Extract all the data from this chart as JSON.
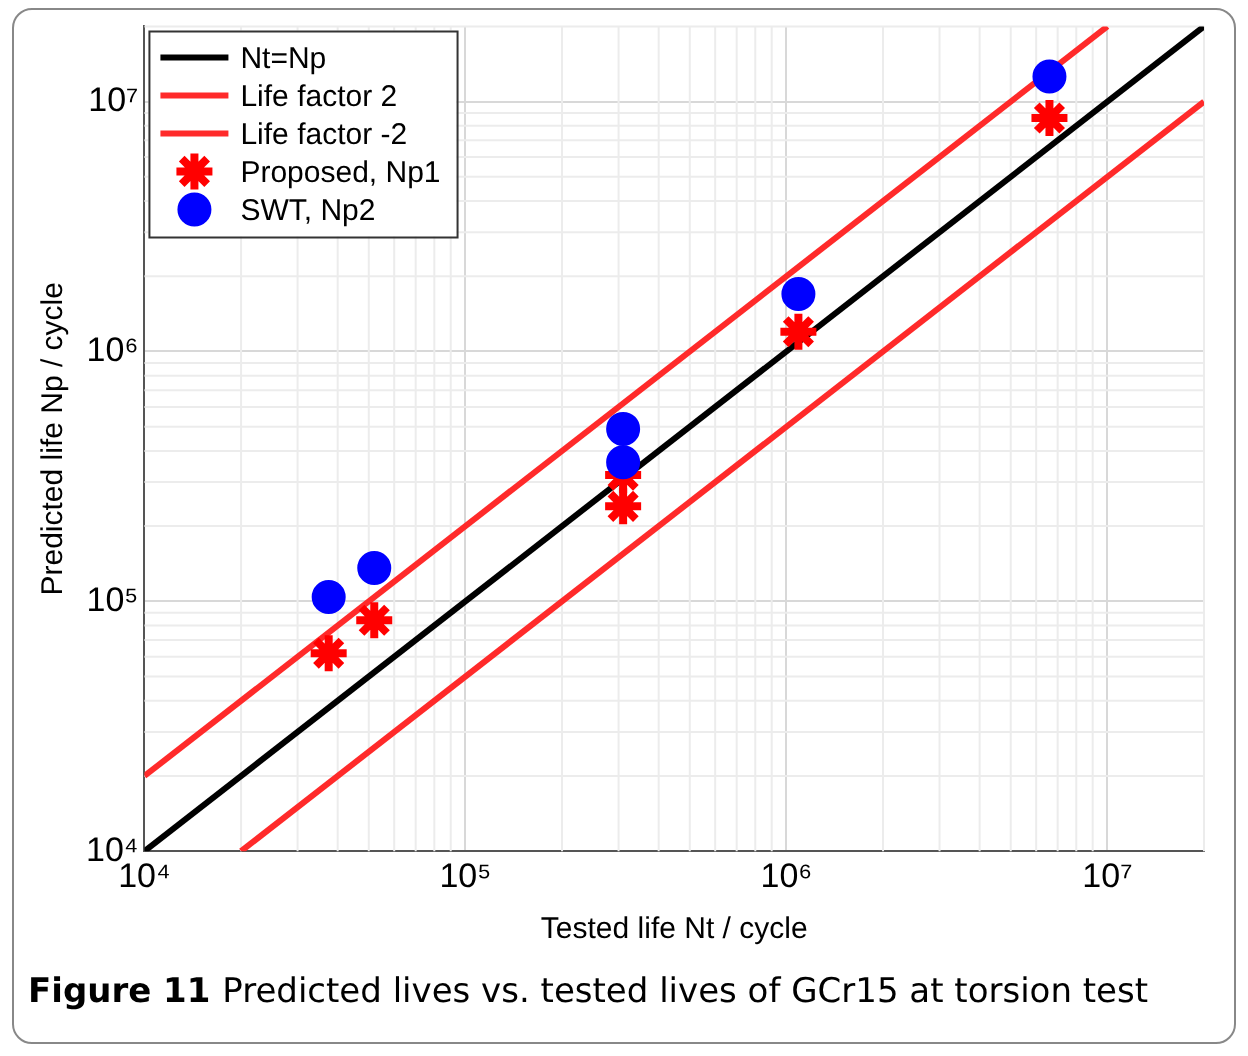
{
  "chart_data": {
    "type": "scatter",
    "xlabel": "Tested life Nt / cycle",
    "ylabel": "Predicted life Np / cycle",
    "log": "xy",
    "grid": true,
    "legend": "top left",
    "xlim": [
      10000,
      20000000
    ],
    "ylim": [
      10000,
      20000000
    ],
    "xticks": [
      {
        "value": 10000,
        "label": "10⁴"
      },
      {
        "value": 100000,
        "label": "10⁵"
      },
      {
        "value": 1000000,
        "label": "10⁶"
      },
      {
        "value": 10000000,
        "label": "10⁷"
      }
    ],
    "yticks": [
      {
        "value": 10000,
        "label": "10⁴"
      },
      {
        "value": 100000,
        "label": "10⁵"
      },
      {
        "value": 1000000,
        "label": "10⁶"
      },
      {
        "value": 10000000,
        "label": "10⁷"
      }
    ],
    "series": [
      {
        "name": "Nt=Np",
        "type": "line",
        "color": "#000000",
        "marker": "none",
        "line_style": "solid",
        "x": [
          10000,
          20000000
        ],
        "values": [
          10000,
          20000000
        ]
      },
      {
        "name": "Life factor 2",
        "type": "line",
        "color": "#ff2a2a",
        "marker": "none",
        "line_style": "solid",
        "x": [
          10000,
          10000000
        ],
        "values": [
          20000,
          20000000
        ]
      },
      {
        "name": "Life factor -2",
        "type": "line",
        "color": "#ff2a2a",
        "marker": "none",
        "line_style": "solid",
        "x": [
          20000,
          20000000
        ],
        "values": [
          10000,
          10000000
        ]
      },
      {
        "name": "Proposed, Np1",
        "type": "scatter",
        "color": "#ff0000",
        "x": [
          37500,
          52000,
          310000,
          310000,
          1090000,
          6600000
        ],
        "values": [
          62000,
          84000,
          320000,
          240000,
          1200000,
          8600000
        ]
      },
      {
        "name": "SWT, Np2",
        "type": "scatter",
        "color": "#0000ff",
        "marker": "circle",
        "x": [
          37500,
          52000,
          310000,
          310000,
          1090000,
          6600000
        ],
        "values": [
          104000,
          136000,
          490000,
          360000,
          1700000,
          12600000
        ]
      }
    ],
    "annotations": [
      "Figure 11  Predicted lives vs. tested lives of GCr15 at torsion test"
    ]
  }
}
